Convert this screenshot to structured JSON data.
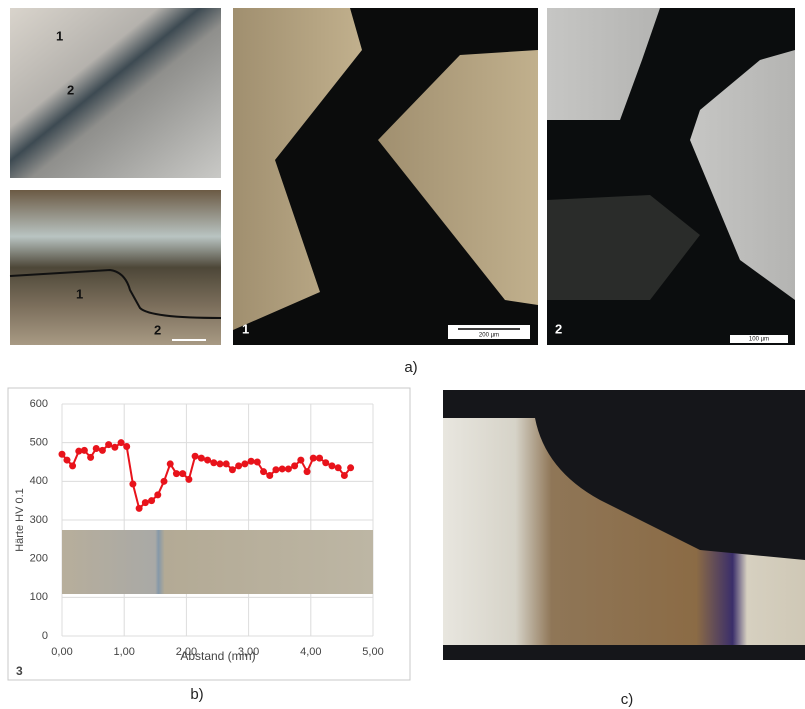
{
  "figure_labels": {
    "a": "a)",
    "b": "b)",
    "c": "c)"
  },
  "photo_markers": {
    "top_left": [
      "1",
      "2"
    ],
    "bottom_left": [
      "1",
      "2"
    ],
    "micrograph_1": "1",
    "micrograph_2": "2"
  },
  "scale_bars": {
    "micrograph_1": "200 µm",
    "micrograph_2": "100 µm"
  },
  "chart_data": {
    "type": "line",
    "panel_number": "3",
    "xlabel": "Abstand (mm)",
    "ylabel": "Härte HV 0.1",
    "x": [
      0.0,
      0.08,
      0.17,
      0.27,
      0.36,
      0.46,
      0.55,
      0.65,
      0.75,
      0.85,
      0.95,
      1.04,
      1.14,
      1.24,
      1.34,
      1.44,
      1.54,
      1.64,
      1.74,
      1.84,
      1.94,
      2.04,
      2.14,
      2.24,
      2.34,
      2.44,
      2.54,
      2.64,
      2.74,
      2.84,
      2.94,
      3.04,
      3.14,
      3.24,
      3.34,
      3.44,
      3.54,
      3.64,
      3.74,
      3.84,
      3.94,
      4.04,
      4.14,
      4.24,
      4.34,
      4.44,
      4.54,
      4.64
    ],
    "values": [
      470,
      455,
      440,
      478,
      480,
      462,
      485,
      480,
      495,
      488,
      500,
      490,
      393,
      330,
      345,
      350,
      365,
      400,
      445,
      420,
      420,
      405,
      465,
      460,
      455,
      448,
      445,
      445,
      430,
      440,
      445,
      452,
      450,
      425,
      415,
      430,
      432,
      432,
      440,
      455,
      425,
      460,
      460,
      448,
      440,
      435,
      415,
      435
    ],
    "color": "#e8131b",
    "xlim": [
      0,
      5
    ],
    "ylim": [
      0,
      600
    ],
    "xticks": [
      {
        "value": 0,
        "label": "0,00"
      },
      {
        "value": 1,
        "label": "1,00"
      },
      {
        "value": 2,
        "label": "2,00"
      },
      {
        "value": 3,
        "label": "3,00"
      },
      {
        "value": 4,
        "label": "4,00"
      },
      {
        "value": 5,
        "label": "5,00"
      }
    ],
    "yticks": [
      0,
      100,
      200,
      300,
      400,
      500,
      600
    ],
    "grid": true
  }
}
